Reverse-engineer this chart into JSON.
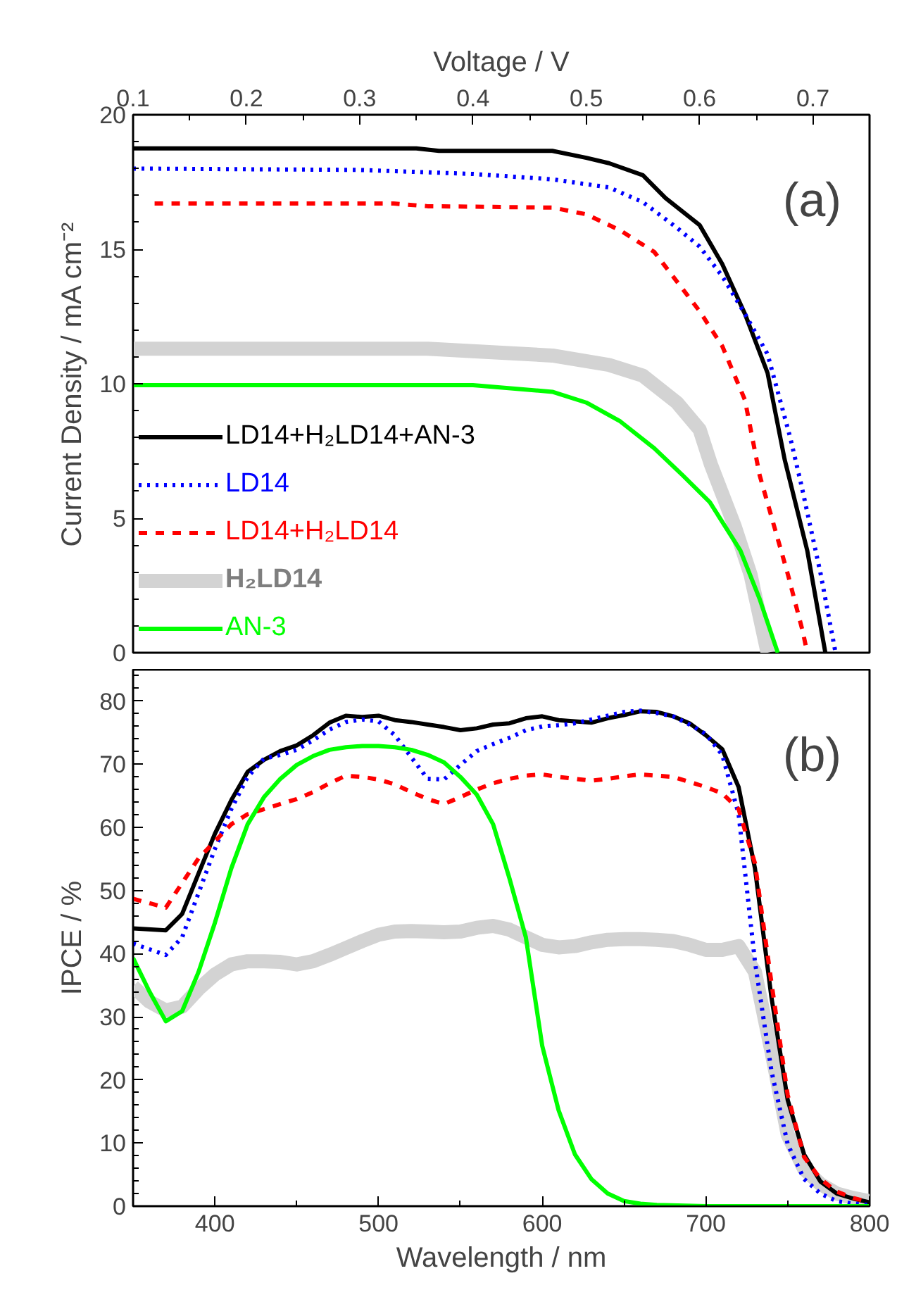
{
  "chart_data": [
    {
      "type": "line",
      "xlabel": "Voltage / V",
      "ylabel": "Current Density / mA cm⁻²",
      "xlim": [
        0.1,
        0.75
      ],
      "xticks": [
        0.1,
        0.2,
        0.3,
        0.4,
        0.5,
        0.6,
        0.7
      ],
      "ylim": [
        0,
        20
      ],
      "yticks": [
        0,
        5,
        10,
        15,
        20
      ],
      "legend": "bottom left",
      "annotations": [
        "(a)"
      ],
      "series": [
        {
          "name": "LD14+H₂LD14+AN-3",
          "color": "#000000",
          "line_style": "solid",
          "x": [
            0.1,
            0.35,
            0.37,
            0.47,
            0.5,
            0.52,
            0.55,
            0.57,
            0.6,
            0.62,
            0.64,
            0.66,
            0.675,
            0.695,
            0.711
          ],
          "values": [
            18.75,
            18.75,
            18.66,
            18.66,
            18.4,
            18.2,
            17.75,
            16.9,
            15.9,
            14.45,
            12.6,
            10.4,
            7.2,
            3.8,
            0
          ]
        },
        {
          "name": "LD14",
          "color": "#0000ff",
          "line_style": "dotted",
          "x": [
            0.1,
            0.3,
            0.4,
            0.47,
            0.52,
            0.55,
            0.58,
            0.6,
            0.62,
            0.64,
            0.66,
            0.68,
            0.69,
            0.707,
            0.72
          ],
          "values": [
            18.0,
            17.95,
            17.8,
            17.6,
            17.3,
            16.75,
            15.8,
            15.1,
            14.0,
            12.6,
            11.1,
            8.0,
            6.2,
            2.9,
            0
          ]
        },
        {
          "name": "LD14+H₂LD14",
          "color": "#ff0000",
          "line_style": "dashed",
          "x": [
            0.119,
            0.33,
            0.36,
            0.47,
            0.5,
            0.53,
            0.56,
            0.58,
            0.6,
            0.62,
            0.64,
            0.653,
            0.678,
            0.691,
            0.695
          ],
          "values": [
            16.7,
            16.7,
            16.6,
            16.55,
            16.3,
            15.7,
            14.9,
            13.8,
            12.7,
            11.4,
            9.4,
            6.6,
            2.9,
            0.8,
            0
          ]
        },
        {
          "name": "H₂LD14",
          "color": "#d3d3d3",
          "line_style": "solid",
          "x": [
            0.1,
            0.36,
            0.47,
            0.52,
            0.55,
            0.58,
            0.6,
            0.61,
            0.631,
            0.645,
            0.66
          ],
          "values": [
            11.3,
            11.3,
            11.05,
            10.7,
            10.3,
            9.3,
            8.3,
            7.0,
            4.7,
            2.9,
            0
          ]
        },
        {
          "name": "AN-3",
          "color": "#00ff00",
          "line_style": "solid",
          "x": [
            0.1,
            0.4,
            0.47,
            0.5,
            0.53,
            0.56,
            0.585,
            0.609,
            0.636,
            0.653,
            0.669
          ],
          "values": [
            9.95,
            9.95,
            9.7,
            9.3,
            8.6,
            7.6,
            6.6,
            5.6,
            3.8,
            2.0,
            0
          ]
        }
      ]
    },
    {
      "type": "line",
      "xlabel": "Wavelength / nm",
      "ylabel": "IPCE / %",
      "xlim": [
        350,
        800
      ],
      "xticks": [
        400,
        500,
        600,
        700,
        800
      ],
      "ylim": [
        0,
        85
      ],
      "yticks": [
        0,
        10,
        20,
        30,
        40,
        50,
        60,
        70,
        80
      ],
      "annotations": [
        "(b)"
      ],
      "series": [
        {
          "color": "#000000",
          "line_style": "solid",
          "x": [
            350,
            370,
            380,
            390,
            400,
            410,
            420,
            430,
            440,
            450,
            460,
            470,
            480,
            490,
            500,
            510,
            520,
            530,
            540,
            550,
            560,
            570,
            580,
            590,
            600,
            610,
            620,
            630,
            640,
            650,
            660,
            670,
            680,
            690,
            700,
            710,
            720,
            730,
            740,
            750,
            760,
            770,
            780,
            790,
            800
          ],
          "values": [
            44,
            43.7,
            46.3,
            52.7,
            59,
            64.3,
            68.8,
            70.7,
            72.1,
            73,
            74.6,
            76.6,
            77.7,
            77.5,
            77.7,
            77,
            76.7,
            76.3,
            75.9,
            75.4,
            75.7,
            76.3,
            76.5,
            77.3,
            77.6,
            77,
            76.8,
            76.6,
            77.3,
            77.8,
            78.4,
            78.3,
            77.6,
            76.5,
            74.6,
            72.4,
            66.4,
            53.5,
            33.2,
            16.8,
            8.2,
            3.9,
            2.0,
            1.2,
            0.6
          ]
        },
        {
          "color": "#0000ff",
          "line_style": "dotted",
          "x": [
            350,
            370,
            380,
            390,
            400,
            410,
            420,
            430,
            440,
            450,
            460,
            470,
            480,
            490,
            500,
            510,
            520,
            530,
            540,
            550,
            560,
            570,
            580,
            590,
            600,
            610,
            620,
            630,
            640,
            650,
            660,
            670,
            680,
            690,
            700,
            710,
            720,
            730,
            740,
            750,
            760,
            770,
            780,
            790,
            800
          ],
          "values": [
            41.6,
            39.8,
            42.6,
            49.6,
            56.6,
            62.9,
            68,
            70.9,
            71.5,
            72.3,
            73.8,
            75.5,
            76.7,
            77.1,
            76.8,
            74.6,
            71.1,
            67.7,
            67.6,
            69.9,
            72.1,
            73.2,
            74.2,
            75.4,
            76,
            76.2,
            76.5,
            77.1,
            77.7,
            78.3,
            78.5,
            78.1,
            77.6,
            76.3,
            74.8,
            71.5,
            62.1,
            38.7,
            21.5,
            9.8,
            4.3,
            2.0,
            0.8,
            0.4,
            0.2
          ]
        },
        {
          "color": "#ff0000",
          "line_style": "dashed",
          "x": [
            350,
            370,
            380,
            390,
            400,
            410,
            420,
            430,
            440,
            450,
            460,
            470,
            480,
            490,
            500,
            510,
            520,
            530,
            540,
            550,
            560,
            570,
            580,
            590,
            600,
            610,
            620,
            630,
            640,
            650,
            660,
            670,
            680,
            690,
            700,
            710,
            720,
            730,
            740,
            750,
            760,
            770,
            780,
            790,
            800
          ],
          "values": [
            48.7,
            47.3,
            51.2,
            55.1,
            57.8,
            60.5,
            62.1,
            62.9,
            63.7,
            64.5,
            65.6,
            67,
            68.2,
            68,
            67.6,
            66.8,
            65.6,
            64.5,
            63.7,
            64.8,
            66,
            67,
            67.7,
            68.2,
            68.4,
            68,
            67.7,
            67.4,
            67.7,
            68.1,
            68.4,
            68.2,
            68,
            67.2,
            66.4,
            65.4,
            62.9,
            54.3,
            35.5,
            17.6,
            7.8,
            4.3,
            2.3,
            1.3,
            0.6
          ]
        },
        {
          "color": "#d3d3d3",
          "line_style": "solid",
          "x": [
            350,
            360,
            370,
            380,
            390,
            400,
            410,
            420,
            430,
            440,
            450,
            460,
            470,
            480,
            490,
            500,
            510,
            520,
            530,
            540,
            550,
            560,
            570,
            580,
            590,
            600,
            610,
            620,
            630,
            640,
            650,
            660,
            670,
            680,
            690,
            700,
            710,
            720,
            730,
            740,
            750,
            760,
            770,
            780,
            790,
            800
          ],
          "values": [
            34.8,
            32.4,
            31,
            31.6,
            34.4,
            36.7,
            38.3,
            38.8,
            38.8,
            38.7,
            38.3,
            38.8,
            39.8,
            40.9,
            42,
            43,
            43.5,
            43.6,
            43.5,
            43.4,
            43.5,
            44.1,
            44.4,
            43.8,
            42.6,
            41.4,
            41,
            41.2,
            41.8,
            42.2,
            42.3,
            42.3,
            42.2,
            42,
            41.4,
            40.6,
            40.6,
            41.2,
            37.1,
            24.6,
            11.3,
            5.9,
            3.5,
            2,
            1.3,
            0.8
          ]
        },
        {
          "color": "#00ff00",
          "line_style": "solid",
          "x": [
            350,
            360,
            370,
            380,
            390,
            400,
            410,
            420,
            430,
            440,
            450,
            460,
            470,
            480,
            490,
            500,
            510,
            520,
            530,
            540,
            550,
            560,
            570,
            580,
            590,
            600,
            610,
            620,
            630,
            640,
            650,
            660,
            670,
            700,
            800
          ],
          "values": [
            39.3,
            34,
            29.3,
            30.9,
            37.1,
            44.9,
            53.5,
            60.5,
            64.8,
            67.7,
            69.9,
            71.3,
            72.3,
            72.7,
            72.9,
            72.9,
            72.7,
            72.3,
            71.5,
            70.3,
            68,
            65.2,
            60.5,
            51.9,
            42.6,
            25.4,
            15.2,
            8.2,
            4.3,
            2.0,
            0.8,
            0.4,
            0.2,
            0,
            0
          ]
        }
      ]
    }
  ]
}
